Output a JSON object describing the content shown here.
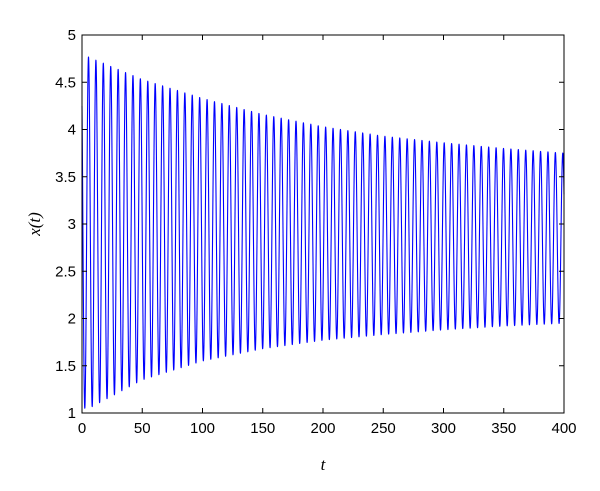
{
  "chart_data": {
    "type": "line",
    "title": "",
    "xlabel": "t",
    "ylabel": "x(t)",
    "xlim": [
      0,
      400
    ],
    "ylim": [
      1,
      5
    ],
    "x_ticks": [
      0,
      50,
      100,
      150,
      200,
      250,
      300,
      350,
      400
    ],
    "x_tick_labels": [
      "0",
      "50",
      "100",
      "150",
      "200",
      "250",
      "300",
      "350",
      "400"
    ],
    "y_ticks": [
      1,
      1.5,
      2,
      2.5,
      3,
      3.5,
      4,
      4.5,
      5
    ],
    "y_tick_labels": [
      "1",
      "1.5",
      "2",
      "2.5",
      "3",
      "3.5",
      "4",
      "4.5",
      "5"
    ],
    "grid": false,
    "legend": "none",
    "series": [
      {
        "color": "#0000ff",
        "oscillation_period": 6.15,
        "start_value": 4.25,
        "end_value": 3.72,
        "upper_envelope": {
          "t": [
            3,
            50,
            100,
            150,
            200,
            250,
            300,
            350,
            400
          ],
          "x": [
            4.78,
            4.53,
            4.33,
            4.16,
            4.03,
            3.93,
            3.86,
            3.8,
            3.75
          ]
        },
        "lower_envelope": {
          "t": [
            6,
            50,
            100,
            150,
            200,
            250,
            300,
            350,
            400
          ],
          "x": [
            1.05,
            1.35,
            1.55,
            1.68,
            1.77,
            1.83,
            1.88,
            1.92,
            1.95
          ]
        }
      }
    ]
  }
}
